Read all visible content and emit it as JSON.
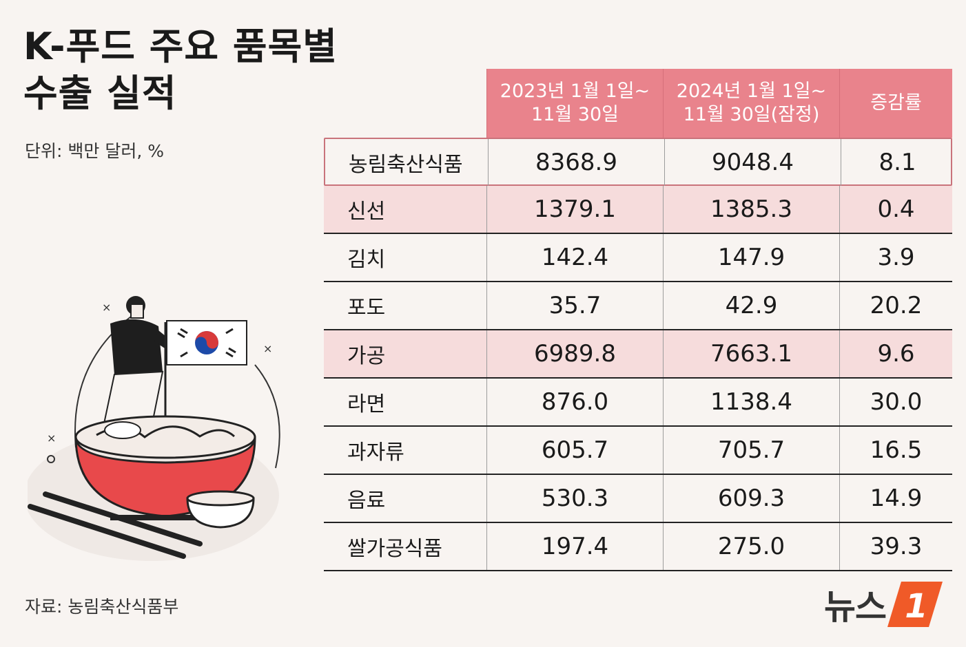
{
  "title_line1": "K-푸드 주요 품목별",
  "title_line2": "수출 실적",
  "unit": "단위: 백만 달러, %",
  "source": "자료: 농림축산식품부",
  "logo_text": "뉴스",
  "logo_mark": "1",
  "colors": {
    "header_bg": "#e9838c",
    "highlight_row": "#f6dcdc",
    "logo_orange": "#f05a28"
  },
  "chart_data": {
    "type": "table",
    "columns": [
      "",
      "2023년 1월 1일~\n11월 30일",
      "2024년 1월 1일~\n11월 30일(잠정)",
      "증감률"
    ],
    "rows": [
      {
        "label": "농림축산식품",
        "v2023": "8368.9",
        "v2024": "9048.4",
        "change": "8.1"
      },
      {
        "label": "신선",
        "v2023": "1379.1",
        "v2024": "1385.3",
        "change": "0.4"
      },
      {
        "label": "김치",
        "v2023": "142.4",
        "v2024": "147.9",
        "change": "3.9"
      },
      {
        "label": "포도",
        "v2023": "35.7",
        "v2024": "42.9",
        "change": "20.2"
      },
      {
        "label": "가공",
        "v2023": "6989.8",
        "v2024": "7663.1",
        "change": "9.6"
      },
      {
        "label": "라면",
        "v2023": "876.0",
        "v2024": "1138.4",
        "change": "30.0"
      },
      {
        "label": "과자류",
        "v2023": "605.7",
        "v2024": "705.7",
        "change": "16.5"
      },
      {
        "label": "음료",
        "v2023": "530.3",
        "v2024": "609.3",
        "change": "14.9"
      },
      {
        "label": "쌀가공식품",
        "v2023": "197.4",
        "v2024": "275.0",
        "change": "39.3"
      }
    ]
  }
}
